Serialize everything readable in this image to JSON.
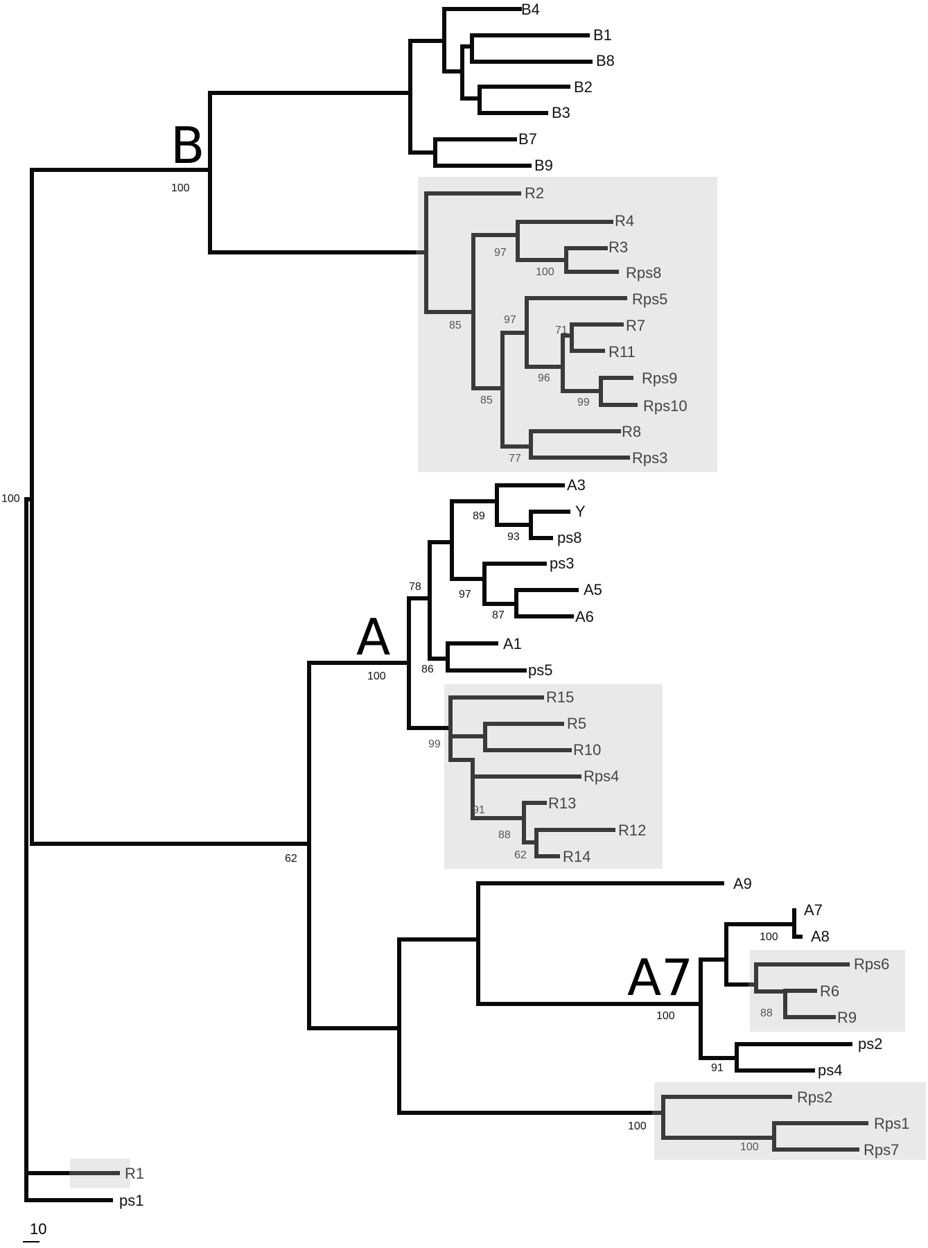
{
  "figure": {
    "clade_labels": [
      "B",
      "A",
      "A7"
    ],
    "scale_bar_label": "10",
    "colors": {
      "branch": "#0a0a0a",
      "shaded_branch": "#3a3a3a",
      "shade_box": "#e9e9e9"
    }
  },
  "leaves": {
    "B4": "B4",
    "B1": "B1",
    "B8": "B8",
    "B2": "B2",
    "B3": "B3",
    "B7": "B7",
    "B9": "B9",
    "R2": "R2",
    "R4": "R4",
    "R3": "R3",
    "Rps8": "Rps8",
    "Rps5": "Rps5",
    "R7": "R7",
    "R11": "R11",
    "Rps9": "Rps9",
    "Rps10": "Rps10",
    "R8": "R8",
    "Rps3": "Rps3",
    "A3": "A3",
    "Y": "Y",
    "ps8": "ps8",
    "ps3": "ps3",
    "A5": "A5",
    "A6": "A6",
    "A1": "A1",
    "ps5": "ps5",
    "R15": "R15",
    "R5": "R5",
    "R10": "R10",
    "Rps4": "Rps4",
    "R13": "R13",
    "R12": "R12",
    "R14": "R14",
    "A9": "A9",
    "A7": "A7",
    "A8": "A8",
    "Rps6": "Rps6",
    "R6": "R6",
    "R9": "R9",
    "ps2": "ps2",
    "ps4": "ps4",
    "Rps2": "Rps2",
    "Rps1": "Rps1",
    "Rps7": "Rps7",
    "R1": "R1",
    "ps1": "ps1"
  },
  "bootstrap": {
    "root": "100",
    "cladeB": "100",
    "r_top": "97",
    "r3_rps8": "100",
    "r_group": "85",
    "r_sub": "85",
    "rps5_grp": "97",
    "r7_r11": "71",
    "r7_grp": "96",
    "rps9_10": "99",
    "r8_rps3": "77",
    "cladeA": "100",
    "a_inner": "78",
    "a3_grp": "89",
    "y_ps8": "93",
    "ps3_grp": "97",
    "a5_a6": "87",
    "a1_ps5": "86",
    "r15_grp": "99",
    "rps4_grp": "91",
    "r13_grp": "88",
    "r12_r14": "62",
    "a_lower": "62",
    "a7_a8": "100",
    "r6_r9": "88",
    "cladeA7": "100",
    "ps2_ps4": "91",
    "rps2_grp": "100",
    "rps1_rps7": "100"
  }
}
